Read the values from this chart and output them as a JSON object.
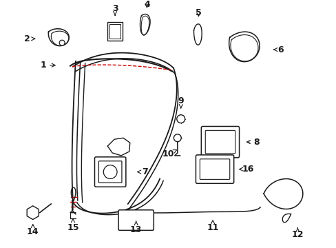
{
  "bg_color": "#ffffff",
  "line_color": "#1a1a1a",
  "red_color": "#cc0000",
  "figsize": [
    4.89,
    3.6
  ],
  "dpi": 100,
  "components": {
    "part1_label": "1",
    "part2_label": "2",
    "part3_label": "3",
    "part4_label": "4",
    "part5_label": "5",
    "part6_label": "6",
    "part7_label": "7",
    "part8_label": "8",
    "part9_label": "9",
    "part10_label": "10",
    "part11_label": "11",
    "part12_label": "12",
    "part13_label": "13",
    "part14_label": "14",
    "part15_label": "15",
    "part16_label": "16"
  }
}
